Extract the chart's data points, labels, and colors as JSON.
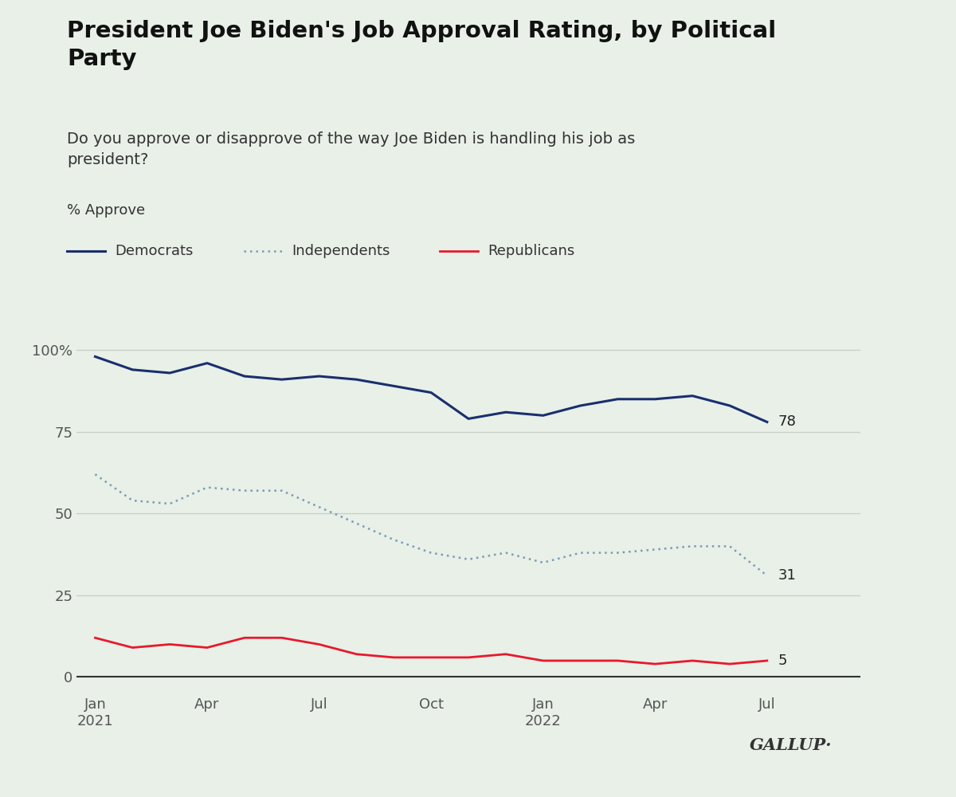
{
  "title": "President Joe Biden's Job Approval Rating, by Political\nParty",
  "subtitle": "Do you approve or disapprove of the way Joe Biden is handling his job as\npresident?",
  "ylabel": "% Approve",
  "background_color": "#e8f0e8",
  "plot_bg_color": "#e8f0e8",
  "democrats_color": "#1a2f6e",
  "independents_color": "#7a9ab5",
  "republicans_color": "#e8192c",
  "grid_color": "#c5d0c5",
  "democrats_label": "Democrats",
  "independents_label": "Independents",
  "republicans_label": "Republicans",
  "end_labels": {
    "democrats": "78",
    "independents": "31",
    "republicans": "5"
  },
  "gallup_text": "GALLUP·",
  "x_tick_labels": [
    "Jan\n2021",
    "Apr",
    "Jul",
    "Oct",
    "Jan\n2022",
    "Apr",
    "Jul"
  ],
  "x_tick_positions": [
    0,
    3,
    6,
    9,
    12,
    15,
    18
  ],
  "yticks": [
    0,
    25,
    50,
    75,
    100
  ],
  "democrats": [
    98,
    94,
    93,
    96,
    92,
    91,
    92,
    91,
    89,
    87,
    79,
    81,
    80,
    83,
    85,
    85,
    86,
    83,
    78
  ],
  "independents": [
    62,
    54,
    53,
    58,
    57,
    57,
    52,
    47,
    42,
    38,
    36,
    38,
    35,
    38,
    38,
    39,
    40,
    40,
    31
  ],
  "republicans": [
    12,
    9,
    10,
    9,
    12,
    12,
    10,
    7,
    6,
    6,
    6,
    7,
    5,
    5,
    5,
    4,
    5,
    4,
    5
  ]
}
